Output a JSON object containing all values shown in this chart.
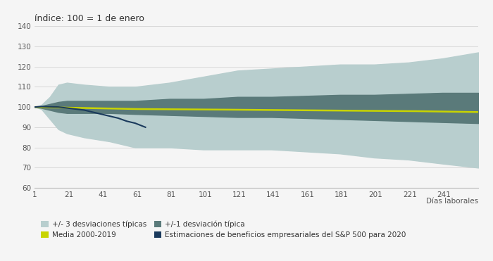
{
  "title": "índice: 100 = 1 de enero",
  "xlabel": "Días laborales",
  "ylim": [
    60,
    140
  ],
  "xlim": [
    1,
    261
  ],
  "yticks": [
    60,
    70,
    80,
    90,
    100,
    110,
    120,
    130,
    140
  ],
  "xticks": [
    1,
    21,
    41,
    61,
    81,
    101,
    121,
    141,
    161,
    181,
    201,
    221,
    241
  ],
  "color_3std": "#b8cece",
  "color_1std": "#5a7a7a",
  "color_mean": "#c8d400",
  "color_sp500": "#1a3a5c",
  "bg_color": "#f5f5f5",
  "legend_labels": [
    "+/- 3 desviaciones típicas",
    "Media 2000-2019",
    "+/-1 desviación típica",
    "Estimaciones de beneficios empresariales del S&P 500 para 2020"
  ],
  "n_days": 261
}
